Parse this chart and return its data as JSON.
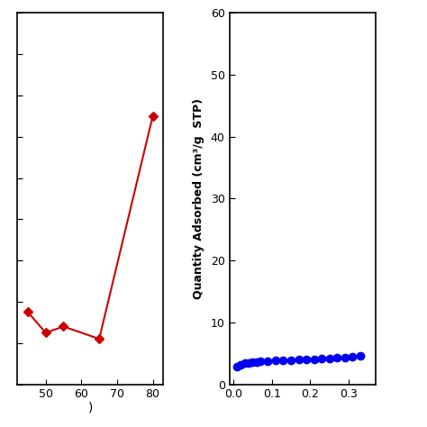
{
  "left_chart": {
    "x": [
      45,
      50,
      55,
      65,
      80
    ],
    "y": [
      11.5,
      10.5,
      10.8,
      10.2,
      21.0
    ],
    "color": "#cc0000",
    "marker": "D",
    "markersize": 5,
    "xlim": [
      42,
      83
    ],
    "ylim": [
      8,
      26
    ],
    "xticks": [
      50,
      60,
      70,
      80
    ],
    "xlabel": ")"
  },
  "right_chart": {
    "x": [
      0.01,
      0.02,
      0.03,
      0.04,
      0.05,
      0.06,
      0.07,
      0.09,
      0.11,
      0.13,
      0.15,
      0.17,
      0.19,
      0.21,
      0.23,
      0.25,
      0.27,
      0.29,
      0.31,
      0.33
    ],
    "y": [
      2.8,
      3.1,
      3.4,
      3.5,
      3.6,
      3.65,
      3.7,
      3.75,
      3.8,
      3.85,
      3.9,
      3.95,
      4.0,
      4.05,
      4.1,
      4.15,
      4.25,
      4.35,
      4.5,
      4.65
    ],
    "color": "#0000ee",
    "marker": "o",
    "markersize": 6,
    "xlim": [
      -0.01,
      0.37
    ],
    "xticks": [
      0.0,
      0.1,
      0.2,
      0.3
    ],
    "ylim": [
      0,
      60
    ],
    "yticks": [
      0,
      10,
      20,
      30,
      40,
      50,
      60
    ],
    "ylabel": "Quantity Adsorbed (cm³/g  STP)"
  }
}
